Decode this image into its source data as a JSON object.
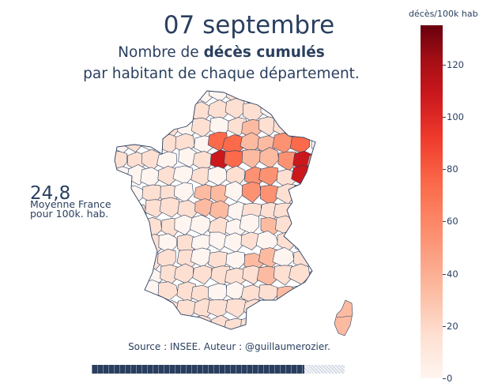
{
  "title": {
    "date": "07 septembre",
    "subtitle_pre": "Nombre de ",
    "subtitle_bold": "décès cumulés",
    "subtitle_line2": "par habitant de chaque département."
  },
  "average": {
    "value": "24,8",
    "label_line1": "Moyenne France",
    "label_line2": "pour 100k. hab."
  },
  "source": "Source : INSEE. Auteur : @guillaumerozier.",
  "progress": {
    "fraction": 0.84
  },
  "colorbar": {
    "title": "décès/100k hab",
    "min": 0,
    "max": 135,
    "ticks": [
      "0",
      "20",
      "40",
      "60",
      "80",
      "100",
      "120"
    ],
    "colors": [
      "#fff5f0",
      "#fee0d2",
      "#fcbba1",
      "#fc9272",
      "#fb6a4a",
      "#ef3b2c",
      "#cb181d",
      "#a50f15",
      "#67000d"
    ]
  },
  "map": {
    "outline_color": "#2a3f5f",
    "level_samples": [
      8,
      12,
      15,
      18,
      22,
      30,
      45,
      55,
      70,
      95,
      130
    ]
  }
}
